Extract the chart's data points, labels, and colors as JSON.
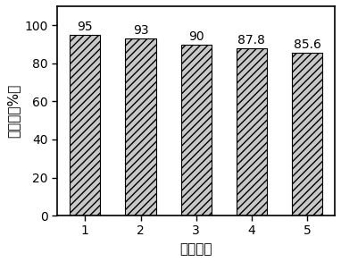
{
  "categories": [
    "1",
    "2",
    "3",
    "4",
    "5"
  ],
  "values": [
    95,
    93,
    90,
    87.8,
    85.6
  ],
  "bar_color": "#c8c8c8",
  "hatch_pattern": "////",
  "xlabel": "重复次数",
  "ylabel": "降解率（%）",
  "ylim": [
    0,
    110
  ],
  "yticks": [
    0,
    20,
    40,
    60,
    80,
    100
  ],
  "title": "",
  "bar_width": 0.55,
  "label_fontsize": 11,
  "tick_fontsize": 10,
  "value_fontsize": 10,
  "edge_color": "#000000",
  "background_color": "#ffffff"
}
